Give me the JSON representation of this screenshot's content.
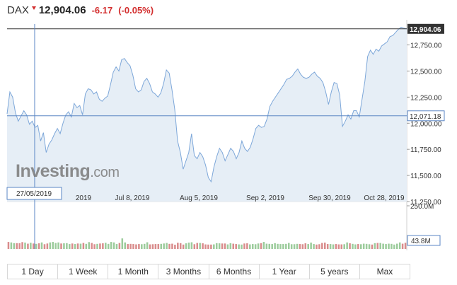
{
  "header": {
    "symbol": "DAX",
    "price": "12,904.06",
    "change": "-6.17",
    "change_pct": "(-0.05%)",
    "direction_icon": "down-arrow-icon"
  },
  "crosshair": {
    "date_label": "27/05/2019",
    "value_label": "12,071.18"
  },
  "last_price_label": "12,904.06",
  "volume_label": "43.8M",
  "watermark": {
    "brand": "Investing",
    "suffix": ".com"
  },
  "tabs": [
    "1 Day",
    "1 Week",
    "1 Month",
    "3 Months",
    "6 Months",
    "1 Year",
    "5 years",
    "Max"
  ],
  "colors": {
    "line": "#7da7d9",
    "area": "#e6eef6",
    "up_volume": "#9ccc9c",
    "down_volume": "#d98c8c",
    "down_text": "#d32f2f"
  },
  "chart_data": {
    "type": "area",
    "price_axis": {
      "ticks": [
        11250,
        11500,
        11750,
        12000,
        12250,
        12500,
        12750
      ],
      "tick_labels": [
        "11,250.00",
        "11,500.00",
        "11,750.00",
        "12,000.00",
        "12,250.00",
        "12,500.00",
        "12,750.00"
      ],
      "ylim": [
        11250,
        12950
      ]
    },
    "x_axis": {
      "tick_labels": [
        "2019",
        "Jul 8, 2019",
        "Aug 5, 2019",
        "Sep 2, 2019",
        "Sep 30, 2019",
        "Oct 28, 2019"
      ]
    },
    "volume_axis": {
      "tick_labels": [
        "250.0M"
      ],
      "ylim": [
        0,
        250
      ]
    },
    "series": [
      {
        "values": [
          12090,
          12300,
          12250,
          12100,
          12020,
          12070,
          12120,
          12080,
          11990,
          12020,
          11960,
          11980,
          11830,
          11910,
          11720,
          11800,
          11840,
          11900,
          11950,
          11900,
          12000,
          12080,
          12110,
          12060,
          12190,
          12150,
          12170,
          12080,
          12280,
          12330,
          12320,
          12280,
          12300,
          12230,
          12210,
          12240,
          12260,
          12370,
          12490,
          12540,
          12500,
          12610,
          12620,
          12580,
          12550,
          12460,
          12330,
          12300,
          12320,
          12400,
          12430,
          12380,
          12300,
          12280,
          12250,
          12290,
          12380,
          12510,
          12480,
          12320,
          12130,
          11830,
          11720,
          11560,
          11640,
          11720,
          11900,
          11690,
          11660,
          11720,
          11680,
          11600,
          11480,
          11440,
          11580,
          11680,
          11760,
          11720,
          11640,
          11700,
          11760,
          11730,
          11660,
          11720,
          11830,
          11760,
          11730,
          11770,
          11850,
          11950,
          11980,
          11960,
          11970,
          12040,
          12160,
          12210,
          12250,
          12290,
          12330,
          12370,
          12420,
          12430,
          12450,
          12490,
          12520,
          12470,
          12440,
          12430,
          12440,
          12470,
          12490,
          12450,
          12430,
          12390,
          12300,
          12180,
          12300,
          12390,
          12380,
          12270,
          11970,
          12020,
          12080,
          12040,
          12120,
          12120,
          12060,
          12230,
          12400,
          12640,
          12700,
          12660,
          12710,
          12690,
          12740,
          12760,
          12780,
          12830,
          12840,
          12870,
          12900,
          12920,
          12910,
          12904
        ]
      },
      {
        "name": "volume",
        "values": [
          40,
          37,
          33,
          33,
          33,
          39,
          36,
          30,
          35,
          31,
          29,
          32,
          37,
          27,
          31,
          37,
          40,
          34,
          37,
          31,
          32,
          33,
          28,
          31,
          28,
          31,
          30,
          34,
          29,
          39,
          34,
          27,
          29,
          31,
          32,
          35,
          29,
          40,
          37,
          28,
          34,
          60,
          37,
          28,
          29,
          28,
          26,
          28,
          27,
          29,
          38,
          26,
          27,
          28,
          28,
          29,
          31,
          34,
          29,
          30,
          24,
          35,
          33,
          25,
          32,
          36,
          38,
          27,
          34,
          34,
          32,
          26,
          25,
          25,
          26,
          33,
          32,
          31,
          31,
          26,
          33,
          30,
          28,
          26,
          25,
          31,
          32,
          26,
          28,
          27,
          31,
          33,
          40,
          30,
          29,
          28,
          33,
          29,
          28,
          28,
          29,
          34,
          27,
          27,
          29,
          28,
          27,
          32,
          28,
          36,
          28,
          25,
          27,
          34,
          36,
          28,
          28,
          26,
          28,
          26,
          26,
          27,
          37,
          32,
          29,
          26,
          28,
          27,
          30,
          29,
          27,
          25,
          33,
          34,
          34,
          30,
          28,
          30,
          29,
          25,
          30,
          37,
          30,
          35
        ]
      }
    ],
    "volume_up_down": [
      0,
      1,
      1,
      0,
      0,
      0,
      1,
      0,
      1,
      0,
      1,
      0,
      1,
      0,
      0,
      1,
      1,
      1,
      1,
      0,
      1,
      1,
      1,
      0,
      1,
      0,
      1,
      0,
      1,
      1,
      0,
      0,
      1,
      0,
      0,
      1,
      1,
      1,
      1,
      1,
      0,
      1,
      1,
      0,
      0,
      0,
      0,
      0,
      1,
      1,
      1,
      0,
      0,
      0,
      0,
      1,
      1,
      1,
      0,
      0,
      0,
      0,
      0,
      0,
      1,
      1,
      1,
      0,
      0,
      1,
      0,
      0,
      0,
      0,
      1,
      1,
      1,
      0,
      0,
      1,
      1,
      0,
      0,
      1,
      1,
      0,
      0,
      1,
      1,
      1,
      1,
      0,
      1,
      1,
      1,
      1,
      1,
      1,
      1,
      1,
      1,
      1,
      1,
      1,
      1,
      0,
      0,
      0,
      1,
      1,
      1,
      0,
      0,
      0,
      0,
      0,
      1,
      1,
      0,
      0,
      0,
      1,
      1,
      0,
      1,
      1,
      0,
      1,
      1,
      1,
      1,
      0,
      1,
      0,
      1,
      1,
      1,
      1,
      1,
      1,
      1,
      1,
      0,
      0
    ]
  }
}
